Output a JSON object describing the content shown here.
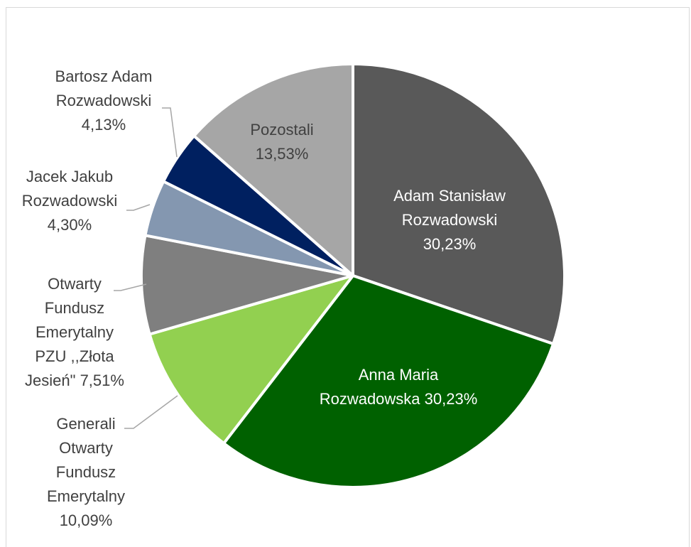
{
  "chart_data": {
    "type": "pie",
    "title": "",
    "slices": [
      {
        "label": "Adam Stanisław Rozwadowski",
        "value": 30.23,
        "value_text": "30,23%",
        "color": "#595959",
        "text_color": "#ffffff"
      },
      {
        "label": "Anna Maria Rozwadowska",
        "value": 30.23,
        "value_text": "30,23%",
        "color": "#006100",
        "text_color": "#ffffff"
      },
      {
        "label": "Generali Otwarty Fundusz Emerytalny",
        "value": 10.09,
        "value_text": "10,09%",
        "color": "#92d050",
        "text_color": "#404040"
      },
      {
        "label": "Otwarty Fundusz Emerytalny PZU ,,Złota Jesień\"",
        "value": 7.51,
        "value_text": "7,51%",
        "color": "#7f7f7f",
        "text_color": "#404040"
      },
      {
        "label": "Jacek Jakub Rozwadowski",
        "value": 4.3,
        "value_text": "4,30%",
        "color": "#8497b0",
        "text_color": "#404040"
      },
      {
        "label": "Bartosz Adam Rozwadowski",
        "value": 4.13,
        "value_text": "4,13%",
        "color": "#002060",
        "text_color": "#404040"
      },
      {
        "label": "Pozostali",
        "value": 13.53,
        "value_text": "13,53%",
        "color": "#a6a6a6",
        "text_color": "#404040"
      }
    ],
    "data_labels": [
      [
        "Adam Stanisław",
        "Rozwadowski",
        "30,23%"
      ],
      [
        "Anna Maria",
        "Rozwadowska 30,23%"
      ],
      [
        "Generali",
        "Otwarty",
        "Fundusz",
        "Emerytalny",
        "10,09%"
      ],
      [
        "Otwarty",
        "Fundusz",
        "Emerytalny",
        "PZU ,,Złota",
        "Jesień\" 7,51%"
      ],
      [
        "Jacek Jakub",
        "Rozwadowski",
        "4,30%"
      ],
      [
        "Bartosz Adam",
        "Rozwadowski",
        "4,13%"
      ],
      [
        "Pozostali",
        "13,53%"
      ]
    ],
    "start_angle_deg": 0,
    "direction": "clockwise",
    "legend": "none",
    "slice_border_color": "#ffffff"
  }
}
